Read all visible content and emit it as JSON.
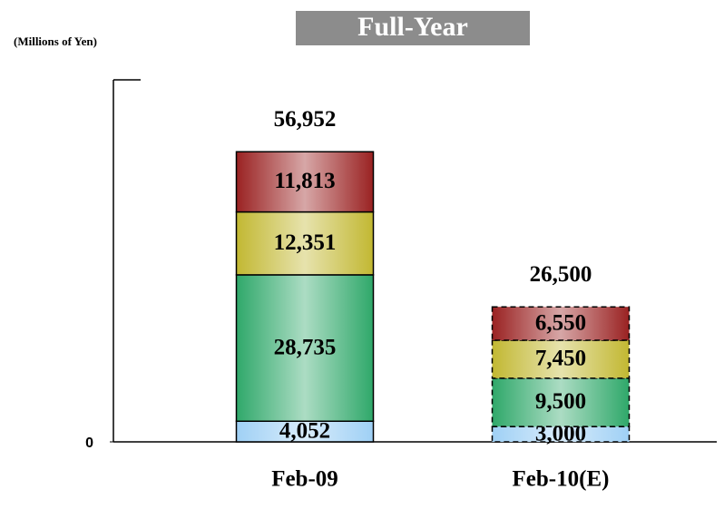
{
  "chart_data": {
    "type": "stacked-bar",
    "title": "Full-Year",
    "y_label": "(Millions of Yen)",
    "categories": [
      "Feb-09",
      "Feb-10(E)"
    ],
    "series": [
      {
        "color": "#9fd0f5",
        "values": [
          4052,
          3000
        ],
        "value_labels": [
          "4,052",
          "3,000"
        ]
      },
      {
        "color": "#2fa86a",
        "values": [
          28735,
          9500
        ],
        "value_labels": [
          "28,735",
          "9,500"
        ]
      },
      {
        "color": "#c2b832",
        "values": [
          12351,
          7450
        ],
        "value_labels": [
          "12,351",
          "7,450"
        ]
      },
      {
        "color": "#9a2222",
        "values": [
          11813,
          6550
        ],
        "value_labels": [
          "11,813",
          "6,550"
        ]
      }
    ],
    "totals": [
      56952,
      26500
    ],
    "total_labels": [
      "56,952",
      "26,500"
    ],
    "bar_styles": [
      "solid",
      "dashed"
    ],
    "ylim": [
      0,
      70000
    ],
    "yticks": [
      0
    ]
  }
}
